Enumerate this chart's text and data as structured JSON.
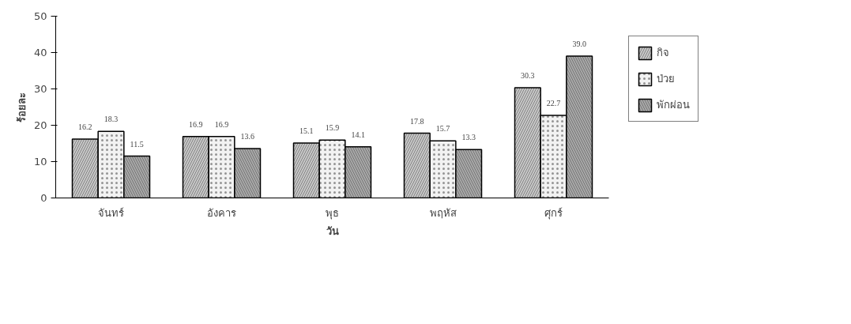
{
  "chart_data": {
    "type": "bar",
    "xlabel": "วัน",
    "ylabel": "ร้อยละ",
    "categories": [
      "จันทร์",
      "อังคาร",
      "พุธ",
      "พฤหัส",
      "ศุกร์"
    ],
    "series": [
      {
        "name": "กิจ",
        "color": "#c8c8c8",
        "values": [
          16.2,
          16.9,
          15.1,
          17.8,
          30.3
        ]
      },
      {
        "name": "ป่วย",
        "color": "#f2f2f2",
        "values": [
          18.3,
          16.9,
          15.9,
          15.7,
          22.7
        ]
      },
      {
        "name": "พักผ่อน",
        "color": "#a8a8a8",
        "values": [
          11.5,
          13.6,
          14.1,
          13.3,
          39.0
        ]
      }
    ],
    "value_labels": [
      [
        "16.2",
        "16.9",
        "15.1",
        "17.8",
        "30.3"
      ],
      [
        "18.3",
        "16.9",
        "15.9",
        "15.7",
        "22.7"
      ],
      [
        "11.5",
        "13.6",
        "14.1",
        "13.3",
        "39.0"
      ]
    ],
    "ylim": [
      0,
      50
    ],
    "yticks": [
      0,
      10,
      20,
      30,
      40,
      50
    ],
    "grid": false,
    "legend": "right"
  }
}
